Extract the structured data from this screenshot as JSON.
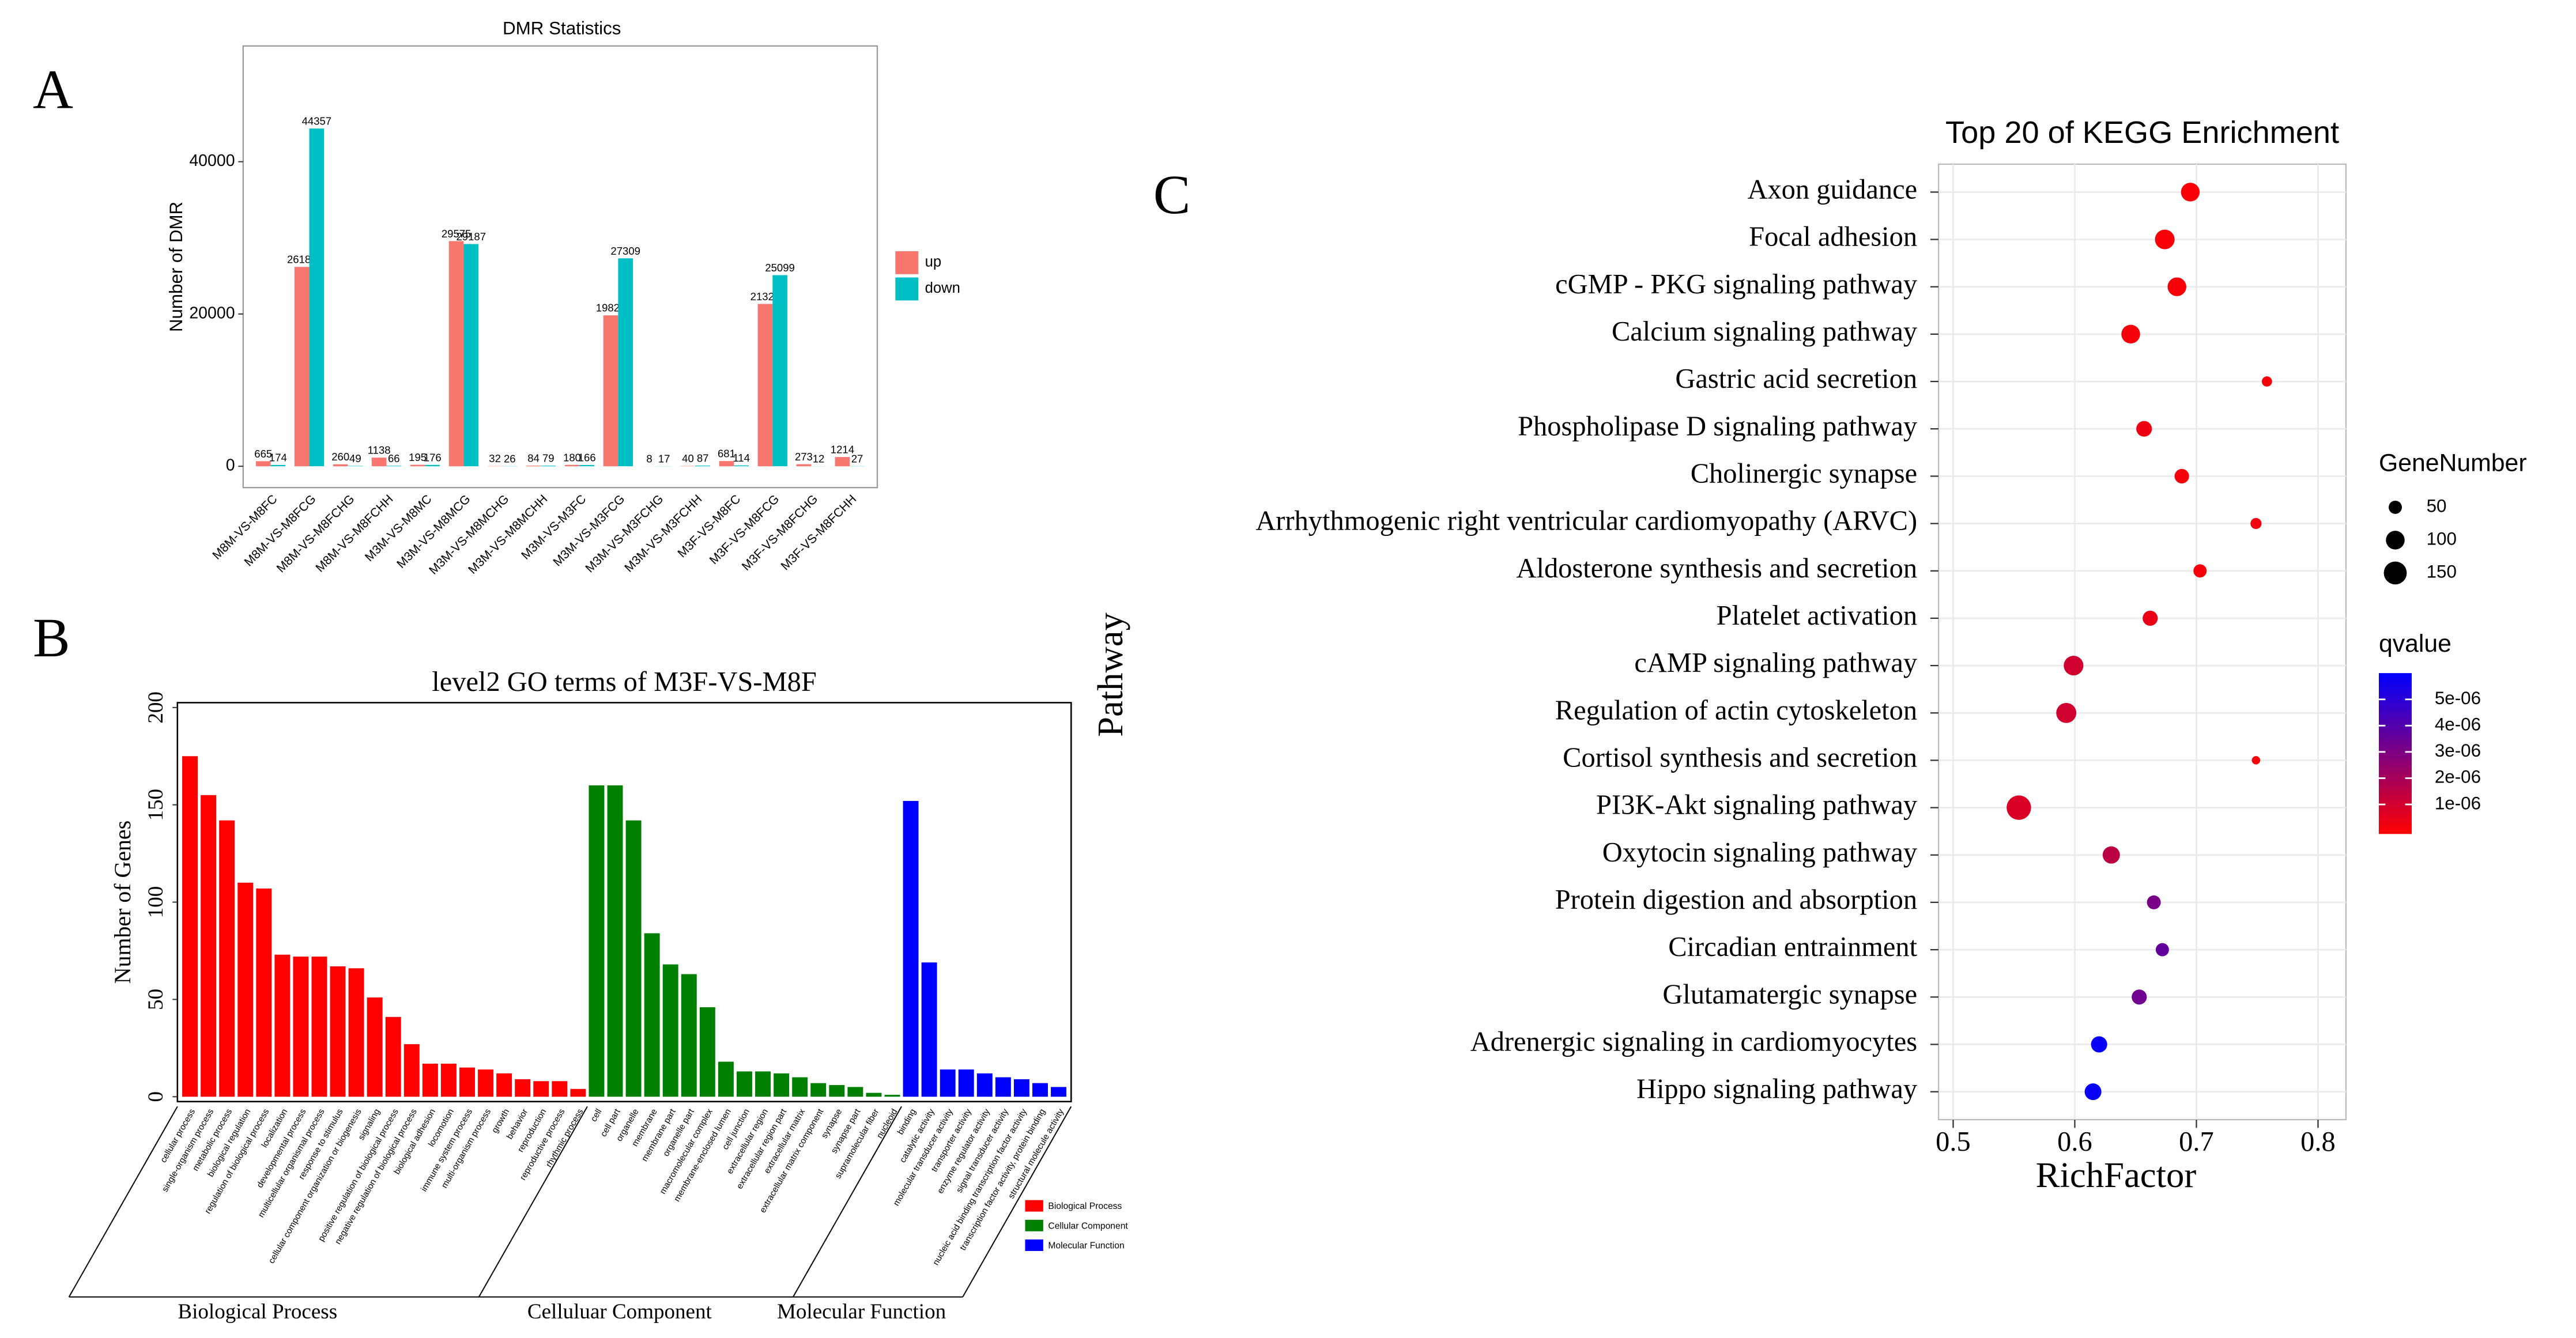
{
  "panel_labels": [
    "A",
    "B",
    "C"
  ],
  "chart_data": [
    {
      "type": "bar",
      "title": "DMR Statistics",
      "y_label": "Number of DMR",
      "categories": [
        "M8M-VS-M8FC",
        "M8M-VS-M8FCG",
        "M8M-VS-M8FCHG",
        "M8M-VS-M8FCHH",
        "M3M-VS-M8MC",
        "M3M-VS-M8MCG",
        "M3M-VS-M8MCHG",
        "M3M-VS-M8MCHH",
        "M3M-VS-M3FC",
        "M3M-VS-M3FCG",
        "M3M-VS-M3FCHG",
        "M3M-VS-M3FCHH",
        "M3F-VS-M8FC",
        "M3F-VS-M8FCG",
        "M3F-VS-M8FCHG",
        "M3F-VS-M8FCHH"
      ],
      "series": [
        {
          "name": "up",
          "color": "#F8766D",
          "values": [
            665,
            26181,
            260,
            1138,
            195,
            29575,
            32,
            84,
            180,
            19822,
            8,
            40,
            681,
            21320,
            273,
            1214
          ]
        },
        {
          "name": "down",
          "color": "#00BFC4",
          "values": [
            174,
            44357,
            49,
            66,
            176,
            29187,
            26,
            79,
            166,
            27309,
            17,
            87,
            114,
            25099,
            12,
            27
          ]
        }
      ],
      "ylim": [
        -2800,
        55200
      ],
      "yticks": [
        0,
        20000,
        40000
      ]
    },
    {
      "type": "bar",
      "title": "level2 GO terms of M3F-VS-M8F",
      "y_label": "Number of Genes",
      "series": [
        {
          "name": "Biological Process",
          "color": "#FF0000",
          "categories": [
            "cellular process",
            "single-organism process",
            "metabolic process",
            "biological regulation",
            "regulation of biological process",
            "localization",
            "developmental process",
            "multicellular organismal process",
            "response to stimulus",
            "cellular component organization or biogenesis",
            "signaling",
            "positive regulation of biological process",
            "negative regulation of biological process",
            "biological adhesion",
            "locomotion",
            "immune system process",
            "multi-organism process",
            "growth",
            "behavior",
            "reproduction",
            "reproductive process",
            "rhythmic process"
          ],
          "values": [
            175,
            155,
            142,
            110,
            107,
            73,
            72,
            72,
            67,
            66,
            51,
            41,
            27,
            17,
            17,
            15,
            14,
            12,
            9,
            8,
            8,
            4
          ]
        },
        {
          "name": "Cellular Component",
          "color": "#008000",
          "categories": [
            "cell",
            "cell part",
            "organelle",
            "membrane",
            "membrane part",
            "organelle part",
            "macromolecular complex",
            "membrane-enclosed lumen",
            "cell junction",
            "extracellular region",
            "extracellular region part",
            "extracellular matrix",
            "extracellular matrix component",
            "synapse",
            "synapse part",
            "supramolecular fiber",
            "nucleoid"
          ],
          "values": [
            160,
            160,
            142,
            84,
            68,
            63,
            46,
            18,
            13,
            13,
            12,
            10,
            7,
            6,
            5,
            2,
            1
          ]
        },
        {
          "name": "Molecular Function",
          "color": "#0000FF",
          "categories": [
            "binding",
            "catalytic activity",
            "molecular transducer activity",
            "transporter activity",
            "enzyme regulator activity",
            "signal transducer activity",
            "nucleic acid binding transcription factor activity",
            "transcription factor activity, protein binding",
            "structural molecule activity"
          ],
          "values": [
            152,
            69,
            14,
            14,
            12,
            10,
            9,
            7,
            5
          ]
        }
      ],
      "group_labels": [
        "Biological Process",
        "Celluluar Component",
        "Molecular Function"
      ],
      "ylim": [
        -2.5,
        202.5
      ],
      "yticks": [
        0,
        50,
        100,
        150,
        200
      ]
    },
    {
      "type": "scatter",
      "title": "Top 20 of KEGG Enrichment",
      "x_label": "RichFactor",
      "y_label": "Pathway",
      "categories": [
        "Axon guidance",
        "Focal adhesion",
        "cGMP - PKG signaling pathway",
        "Calcium signaling pathway",
        "Gastric acid secretion",
        "Phospholipase D signaling pathway",
        "Cholinergic synapse",
        "Arrhythmogenic right ventricular cardiomyopathy (ARVC)",
        "Aldosterone synthesis and secretion",
        "Platelet activation",
        "cAMP signaling pathway",
        "Regulation of actin cytoskeleton",
        "Cortisol synthesis and secretion",
        "PI3K-Akt signaling pathway",
        "Oxytocin signaling pathway",
        "Protein digestion and absorption",
        "Circadian entrainment",
        "Glutamatergic synapse",
        "Adrenergic signaling in cardiomyocytes",
        "Hippo signaling pathway"
      ],
      "values": [
        0.695,
        0.674,
        0.684,
        0.646,
        0.758,
        0.657,
        0.688,
        0.749,
        0.703,
        0.662,
        0.599,
        0.593,
        0.749,
        0.554,
        0.63,
        0.665,
        0.672,
        0.653,
        0.62,
        0.615
      ],
      "sizes": [
        100,
        110,
        100,
        100,
        30,
        70,
        60,
        35,
        50,
        65,
        110,
        115,
        20,
        170,
        85,
        55,
        50,
        65,
        75,
        80
      ],
      "qvalues": [
        5e-08,
        5e-08,
        5e-08,
        1e-07,
        5e-08,
        3e-07,
        1e-07,
        2e-07,
        1e-07,
        4e-07,
        1e-06,
        1e-06,
        1e-07,
        8e-07,
        1.5e-06,
        3.1e-06,
        3.6e-06,
        3.3e-06,
        5.8e-06,
        5.8e-06
      ],
      "xlim": [
        0.488,
        0.823
      ],
      "xticks": [
        0.5,
        0.6,
        0.7,
        0.8
      ],
      "grid": true,
      "size_title": "GeneNumber",
      "size_ticks": [
        50,
        100,
        150
      ],
      "color_title": "qvalue",
      "colors": [
        "#FF0000",
        "#0000FF"
      ],
      "qlim": [
        -1.25e-07,
        6e-06
      ],
      "qticks": [
        {
          "value": 1e-06,
          "label": "1e-06"
        },
        {
          "value": 2e-06,
          "label": "2e-06"
        },
        {
          "value": 3e-06,
          "label": "3e-06"
        },
        {
          "value": 4e-06,
          "label": "4e-06"
        },
        {
          "value": 5e-06,
          "label": "5e-06"
        }
      ]
    }
  ]
}
